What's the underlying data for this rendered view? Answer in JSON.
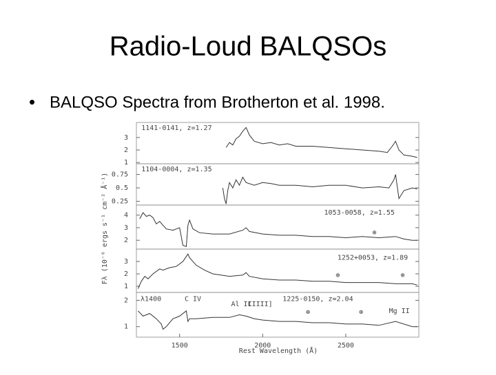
{
  "title": "Radio-Loud BALQSOs",
  "bullet": "BALQSO Spectra from Brotherton et al. 1998.",
  "axis_labels": {
    "x": "Rest Wavelength (Å)",
    "y": "Fλ (10⁻⁶ ergs s⁻¹ cm⁻² Å⁻¹)"
  },
  "chart_data": [
    {
      "type": "line",
      "title": "1141-0141, z=1.27",
      "color": "#333333",
      "xlim": [
        1240,
        2940
      ],
      "ylim": [
        0.9,
        4.2
      ],
      "yticks": [
        1,
        2,
        3
      ],
      "x": [
        1780,
        1800,
        1820,
        1840,
        1860,
        1880,
        1900,
        1920,
        1950,
        2000,
        2050,
        2100,
        2150,
        2200,
        2300,
        2400,
        2500,
        2600,
        2700,
        2750,
        2780,
        2800,
        2820,
        2850,
        2900,
        2930
      ],
      "values": [
        2.2,
        2.6,
        2.4,
        2.9,
        3.1,
        3.5,
        3.8,
        3.2,
        2.7,
        2.5,
        2.6,
        2.4,
        2.5,
        2.3,
        2.3,
        2.2,
        2.1,
        2.0,
        1.9,
        1.8,
        2.3,
        2.7,
        2.0,
        1.6,
        1.5,
        1.4
      ],
      "annotations": [
        {
          "text": "1141-0141, z=1.27",
          "x": 1270,
          "y": 3.75
        }
      ]
    },
    {
      "type": "line",
      "title": "1104-0004, z=1.35",
      "color": "#333333",
      "xlim": [
        1240,
        2940
      ],
      "ylim": [
        0.18,
        0.95
      ],
      "yticks": [
        0.25,
        0.5,
        0.75
      ],
      "x": [
        1760,
        1770,
        1780,
        1790,
        1800,
        1820,
        1840,
        1860,
        1880,
        1900,
        1950,
        2000,
        2050,
        2100,
        2200,
        2300,
        2400,
        2500,
        2600,
        2700,
        2760,
        2790,
        2800,
        2820,
        2850,
        2900,
        2930
      ],
      "values": [
        0.5,
        0.3,
        0.2,
        0.45,
        0.6,
        0.5,
        0.65,
        0.55,
        0.7,
        0.6,
        0.55,
        0.6,
        0.58,
        0.55,
        0.55,
        0.52,
        0.55,
        0.55,
        0.5,
        0.52,
        0.5,
        0.65,
        0.75,
        0.3,
        0.45,
        0.5,
        0.48
      ],
      "annotations": [
        {
          "text": "1104-0004, z=1.35",
          "x": 1270,
          "y": 0.85
        }
      ]
    },
    {
      "type": "line",
      "title": "1053-0058, z=1.55",
      "color": "#333333",
      "xlim": [
        1240,
        2940
      ],
      "ylim": [
        1.3,
        4.8
      ],
      "yticks": [
        2,
        3,
        4
      ],
      "x": [
        1260,
        1280,
        1300,
        1320,
        1340,
        1360,
        1380,
        1400,
        1420,
        1460,
        1500,
        1520,
        1540,
        1550,
        1560,
        1580,
        1620,
        1700,
        1800,
        1880,
        1900,
        1920,
        2000,
        2100,
        2200,
        2300,
        2400,
        2500,
        2600,
        2700,
        2800,
        2850,
        2900,
        2930
      ],
      "values": [
        3.7,
        4.2,
        3.9,
        4.0,
        3.8,
        3.3,
        3.5,
        3.2,
        2.9,
        2.8,
        3.0,
        1.6,
        1.5,
        3.2,
        3.6,
        2.9,
        2.6,
        2.5,
        2.5,
        2.8,
        3.0,
        2.7,
        2.5,
        2.4,
        2.4,
        2.3,
        2.3,
        2.2,
        2.3,
        2.2,
        2.3,
        2.1,
        2.0,
        2.0
      ],
      "annotations": [
        {
          "text": "1053-0058, z=1.55",
          "x": 2370,
          "y": 4.2
        },
        {
          "text": "⊕",
          "x": 2660,
          "y": 2.6
        }
      ]
    },
    {
      "type": "line",
      "title": "1252+0053, z=1.89",
      "color": "#333333",
      "xlim": [
        1240,
        2940
      ],
      "ylim": [
        0.5,
        4.0
      ],
      "yticks": [
        1,
        2,
        3
      ],
      "x": [
        1250,
        1270,
        1290,
        1310,
        1340,
        1380,
        1400,
        1440,
        1480,
        1520,
        1540,
        1550,
        1560,
        1600,
        1650,
        1700,
        1800,
        1880,
        1900,
        1920,
        2000,
        2100,
        2200,
        2300,
        2400,
        2500,
        2600,
        2700,
        2800,
        2850,
        2900,
        2930
      ],
      "values": [
        0.8,
        1.4,
        1.8,
        1.6,
        2.0,
        2.4,
        2.3,
        2.5,
        2.6,
        3.0,
        3.4,
        3.6,
        3.3,
        2.7,
        2.3,
        2.0,
        1.8,
        1.9,
        2.1,
        1.8,
        1.6,
        1.5,
        1.5,
        1.4,
        1.4,
        1.3,
        1.3,
        1.3,
        1.2,
        1.2,
        1.2,
        1.1
      ],
      "annotations": [
        {
          "text": "1252+0053, z=1.89",
          "x": 2450,
          "y": 3.3
        },
        {
          "text": "⊕",
          "x": 2440,
          "y": 1.9
        },
        {
          "text": "⊕",
          "x": 2830,
          "y": 1.9
        }
      ]
    },
    {
      "type": "line",
      "title": "1225-0150, z=2.04",
      "color": "#333333",
      "xlim": [
        1240,
        2940
      ],
      "ylim": [
        0.6,
        2.3
      ],
      "yticks": [
        1,
        2
      ],
      "xticks": [
        1500,
        2000,
        2500
      ],
      "x": [
        1250,
        1280,
        1320,
        1360,
        1390,
        1400,
        1420,
        1460,
        1500,
        1540,
        1550,
        1560,
        1600,
        1700,
        1800,
        1860,
        1900,
        1950,
        2000,
        2100,
        2200,
        2300,
        2400,
        2500,
        2600,
        2700,
        2800,
        2900,
        2930
      ],
      "values": [
        1.6,
        1.4,
        1.5,
        1.3,
        1.1,
        0.9,
        1.0,
        1.3,
        1.4,
        1.6,
        1.2,
        1.3,
        1.3,
        1.35,
        1.35,
        1.45,
        1.4,
        1.3,
        1.25,
        1.2,
        1.2,
        1.15,
        1.15,
        1.1,
        1.1,
        1.05,
        1.2,
        1.0,
        1.0
      ],
      "annotations": [
        {
          "text": "λ1400",
          "x": 1265,
          "y": 2.05
        },
        {
          "text": "C IV",
          "x": 1530,
          "y": 2.05
        },
        {
          "text": "Al III",
          "x": 1810,
          "y": 1.85
        },
        {
          "text": "C III]",
          "x": 1910,
          "y": 1.85
        },
        {
          "text": "1225-0150, z=2.04",
          "x": 2120,
          "y": 2.05
        },
        {
          "text": "Mg II",
          "x": 2760,
          "y": 1.6
        },
        {
          "text": "⊕",
          "x": 2260,
          "y": 1.55
        },
        {
          "text": "⊕",
          "x": 2580,
          "y": 1.55
        }
      ]
    }
  ]
}
